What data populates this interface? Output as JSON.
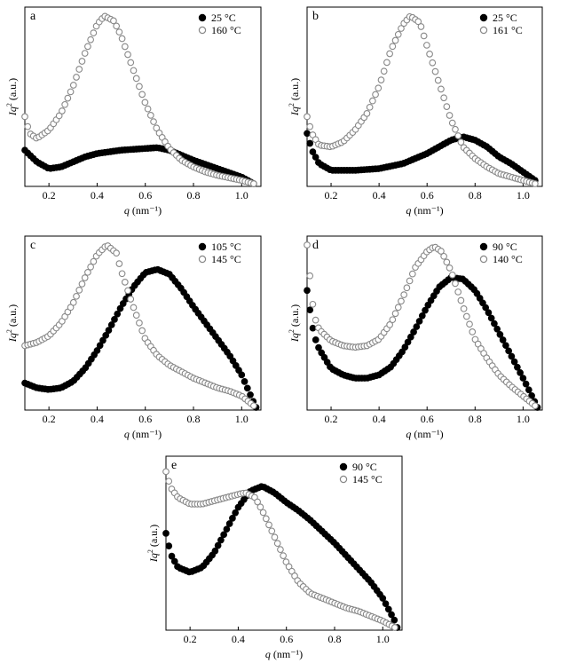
{
  "chart_data": [
    {
      "type": "scatter",
      "panel": "a",
      "xlabel_italic": "q",
      "xlabel_unit": "(nm⁻¹)",
      "ylabel_italic": "Iq",
      "ylabel_sup": "2",
      "ylabel_unit": "(a.u.)",
      "xticks": [
        "0.2",
        "0.4",
        "0.6",
        "0.8",
        "1.0"
      ],
      "xlim": [
        0.1,
        1.08
      ],
      "ylim": [
        0,
        1
      ],
      "legend": [
        {
          "label": "25 °C",
          "marker": "filled"
        },
        {
          "label": "160 °C",
          "marker": "open"
        }
      ],
      "series": [
        {
          "name": "25 °C",
          "marker": "filled",
          "points": [
            [
              0.1,
              0.2
            ],
            [
              0.15,
              0.13
            ],
            [
              0.2,
              0.09
            ],
            [
              0.25,
              0.1
            ],
            [
              0.3,
              0.13
            ],
            [
              0.35,
              0.16
            ],
            [
              0.4,
              0.18
            ],
            [
              0.5,
              0.2
            ],
            [
              0.6,
              0.21
            ],
            [
              0.65,
              0.215
            ],
            [
              0.7,
              0.2
            ],
            [
              0.8,
              0.14
            ],
            [
              0.9,
              0.09
            ],
            [
              1.0,
              0.04
            ],
            [
              1.05,
              0.0
            ]
          ]
        },
        {
          "name": "160 °C",
          "marker": "open",
          "points": [
            [
              0.1,
              0.4
            ],
            [
              0.12,
              0.3
            ],
            [
              0.15,
              0.27
            ],
            [
              0.2,
              0.32
            ],
            [
              0.25,
              0.42
            ],
            [
              0.3,
              0.58
            ],
            [
              0.35,
              0.78
            ],
            [
              0.4,
              0.95
            ],
            [
              0.43,
              1.0
            ],
            [
              0.47,
              0.97
            ],
            [
              0.5,
              0.88
            ],
            [
              0.55,
              0.68
            ],
            [
              0.6,
              0.48
            ],
            [
              0.65,
              0.32
            ],
            [
              0.7,
              0.21
            ],
            [
              0.75,
              0.14
            ],
            [
              0.8,
              0.1
            ],
            [
              0.85,
              0.07
            ],
            [
              0.9,
              0.05
            ],
            [
              1.0,
              0.02
            ],
            [
              1.05,
              0.0
            ]
          ]
        }
      ]
    },
    {
      "type": "scatter",
      "panel": "b",
      "xlabel_italic": "q",
      "xlabel_unit": "(nm⁻¹)",
      "ylabel_italic": "Iq",
      "ylabel_sup": "2",
      "ylabel_unit": "(a.u.)",
      "xticks": [
        "0.2",
        "0.4",
        "0.6",
        "0.8",
        "1.0"
      ],
      "xlim": [
        0.1,
        1.08
      ],
      "ylim": [
        0,
        1
      ],
      "legend": [
        {
          "label": "25 °C",
          "marker": "filled"
        },
        {
          "label": "161 °C",
          "marker": "open"
        }
      ],
      "series": [
        {
          "name": "25 °C",
          "marker": "filled",
          "points": [
            [
              0.1,
              0.3
            ],
            [
              0.12,
              0.2
            ],
            [
              0.15,
              0.12
            ],
            [
              0.2,
              0.08
            ],
            [
              0.3,
              0.08
            ],
            [
              0.4,
              0.09
            ],
            [
              0.5,
              0.12
            ],
            [
              0.6,
              0.18
            ],
            [
              0.7,
              0.26
            ],
            [
              0.75,
              0.28
            ],
            [
              0.8,
              0.26
            ],
            [
              0.85,
              0.22
            ],
            [
              0.9,
              0.16
            ],
            [
              0.95,
              0.12
            ],
            [
              1.0,
              0.07
            ],
            [
              1.05,
              0.02
            ]
          ]
        },
        {
          "name": "161 °C",
          "marker": "open",
          "points": [
            [
              0.1,
              0.4
            ],
            [
              0.12,
              0.3
            ],
            [
              0.15,
              0.23
            ],
            [
              0.2,
              0.22
            ],
            [
              0.25,
              0.25
            ],
            [
              0.3,
              0.32
            ],
            [
              0.35,
              0.42
            ],
            [
              0.4,
              0.58
            ],
            [
              0.45,
              0.8
            ],
            [
              0.5,
              0.95
            ],
            [
              0.53,
              1.0
            ],
            [
              0.57,
              0.96
            ],
            [
              0.6,
              0.82
            ],
            [
              0.65,
              0.6
            ],
            [
              0.7,
              0.38
            ],
            [
              0.75,
              0.22
            ],
            [
              0.8,
              0.15
            ],
            [
              0.85,
              0.1
            ],
            [
              0.9,
              0.06
            ],
            [
              1.0,
              0.02
            ],
            [
              1.05,
              0.0
            ]
          ]
        }
      ]
    },
    {
      "type": "scatter",
      "panel": "c",
      "xlabel_italic": "q",
      "xlabel_unit": "(nm⁻¹)",
      "ylabel_italic": "Iq",
      "ylabel_sup": "2",
      "ylabel_unit": "(a.u.)",
      "xticks": [
        "0.2",
        "0.4",
        "0.6",
        "0.8",
        "1.0"
      ],
      "xlim": [
        0.1,
        1.08
      ],
      "ylim": [
        0,
        1
      ],
      "legend": [
        {
          "label": "105 °C",
          "marker": "filled"
        },
        {
          "label": "145 °C",
          "marker": "open"
        }
      ],
      "series": [
        {
          "name": "105 °C",
          "marker": "filled",
          "points": [
            [
              0.1,
              0.15
            ],
            [
              0.15,
              0.12
            ],
            [
              0.2,
              0.11
            ],
            [
              0.25,
              0.12
            ],
            [
              0.3,
              0.16
            ],
            [
              0.35,
              0.24
            ],
            [
              0.4,
              0.35
            ],
            [
              0.45,
              0.48
            ],
            [
              0.5,
              0.62
            ],
            [
              0.55,
              0.74
            ],
            [
              0.6,
              0.83
            ],
            [
              0.65,
              0.85
            ],
            [
              0.7,
              0.82
            ],
            [
              0.75,
              0.73
            ],
            [
              0.8,
              0.62
            ],
            [
              0.85,
              0.52
            ],
            [
              0.9,
              0.42
            ],
            [
              0.95,
              0.32
            ],
            [
              1.0,
              0.2
            ],
            [
              1.05,
              0.03
            ],
            [
              1.06,
              0.0
            ]
          ]
        },
        {
          "name": "145 °C",
          "marker": "open",
          "points": [
            [
              0.1,
              0.38
            ],
            [
              0.15,
              0.4
            ],
            [
              0.2,
              0.44
            ],
            [
              0.25,
              0.52
            ],
            [
              0.3,
              0.64
            ],
            [
              0.35,
              0.8
            ],
            [
              0.4,
              0.94
            ],
            [
              0.44,
              1.0
            ],
            [
              0.48,
              0.95
            ],
            [
              0.5,
              0.84
            ],
            [
              0.55,
              0.62
            ],
            [
              0.6,
              0.42
            ],
            [
              0.65,
              0.32
            ],
            [
              0.7,
              0.26
            ],
            [
              0.75,
              0.22
            ],
            [
              0.8,
              0.18
            ],
            [
              0.85,
              0.15
            ],
            [
              0.9,
              0.12
            ],
            [
              0.95,
              0.1
            ],
            [
              1.0,
              0.07
            ],
            [
              1.05,
              0.01
            ]
          ]
        }
      ]
    },
    {
      "type": "scatter",
      "panel": "d",
      "xlabel_italic": "q",
      "xlabel_unit": "(nm⁻¹)",
      "ylabel_italic": "Iq",
      "ylabel_sup": "2",
      "ylabel_unit": "(a.u.)",
      "xticks": [
        "0.2",
        "0.4",
        "0.6",
        "0.8",
        "1.0"
      ],
      "xlim": [
        0.1,
        1.08
      ],
      "ylim": [
        0,
        1
      ],
      "legend": [
        {
          "label": "90 °C",
          "marker": "filled"
        },
        {
          "label": "140 °C",
          "marker": "open"
        }
      ],
      "series": [
        {
          "name": "90 °C",
          "marker": "filled",
          "points": [
            [
              0.1,
              0.72
            ],
            [
              0.11,
              0.62
            ],
            [
              0.12,
              0.52
            ],
            [
              0.13,
              0.44
            ],
            [
              0.15,
              0.36
            ],
            [
              0.2,
              0.24
            ],
            [
              0.25,
              0.2
            ],
            [
              0.3,
              0.18
            ],
            [
              0.35,
              0.18
            ],
            [
              0.4,
              0.2
            ],
            [
              0.45,
              0.25
            ],
            [
              0.5,
              0.35
            ],
            [
              0.55,
              0.48
            ],
            [
              0.6,
              0.62
            ],
            [
              0.65,
              0.74
            ],
            [
              0.7,
              0.8
            ],
            [
              0.75,
              0.79
            ],
            [
              0.8,
              0.72
            ],
            [
              0.85,
              0.6
            ],
            [
              0.9,
              0.46
            ],
            [
              0.95,
              0.32
            ],
            [
              1.0,
              0.18
            ],
            [
              1.05,
              0.03
            ],
            [
              1.06,
              0.0
            ]
          ]
        },
        {
          "name": "140 °C",
          "marker": "open",
          "points": [
            [
              0.1,
              1.0
            ],
            [
              0.11,
              0.84
            ],
            [
              0.12,
              0.68
            ],
            [
              0.13,
              0.56
            ],
            [
              0.15,
              0.48
            ],
            [
              0.2,
              0.41
            ],
            [
              0.25,
              0.38
            ],
            [
              0.3,
              0.37
            ],
            [
              0.35,
              0.38
            ],
            [
              0.4,
              0.42
            ],
            [
              0.45,
              0.52
            ],
            [
              0.5,
              0.68
            ],
            [
              0.55,
              0.86
            ],
            [
              0.6,
              0.96
            ],
            [
              0.63,
              0.99
            ],
            [
              0.66,
              0.96
            ],
            [
              0.7,
              0.84
            ],
            [
              0.75,
              0.62
            ],
            [
              0.8,
              0.42
            ],
            [
              0.85,
              0.3
            ],
            [
              0.9,
              0.2
            ],
            [
              0.95,
              0.13
            ],
            [
              1.0,
              0.07
            ],
            [
              1.05,
              0.01
            ]
          ]
        }
      ]
    },
    {
      "type": "scatter",
      "panel": "e",
      "xlabel_italic": "q",
      "xlabel_unit": "(nm⁻¹)",
      "ylabel_italic": "Iq",
      "ylabel_sup": "2",
      "ylabel_unit": "(a.u.)",
      "xticks": [
        "0.2",
        "0.4",
        "0.6",
        "0.8",
        "1.0"
      ],
      "xlim": [
        0.1,
        1.08
      ],
      "ylim": [
        0,
        1
      ],
      "legend": [
        {
          "label": "90 °C",
          "marker": "filled"
        },
        {
          "label": "145 °C",
          "marker": "open"
        }
      ],
      "series": [
        {
          "name": "90 °C",
          "marker": "filled",
          "points": [
            [
              0.1,
              0.58
            ],
            [
              0.12,
              0.45
            ],
            [
              0.15,
              0.37
            ],
            [
              0.2,
              0.34
            ],
            [
              0.25,
              0.37
            ],
            [
              0.3,
              0.46
            ],
            [
              0.35,
              0.6
            ],
            [
              0.4,
              0.74
            ],
            [
              0.45,
              0.84
            ],
            [
              0.5,
              0.87
            ],
            [
              0.55,
              0.83
            ],
            [
              0.6,
              0.77
            ],
            [
              0.65,
              0.72
            ],
            [
              0.7,
              0.66
            ],
            [
              0.75,
              0.59
            ],
            [
              0.8,
              0.52
            ],
            [
              0.85,
              0.44
            ],
            [
              0.9,
              0.36
            ],
            [
              0.95,
              0.28
            ],
            [
              1.0,
              0.18
            ],
            [
              1.05,
              0.04
            ],
            [
              1.06,
              0.0
            ]
          ]
        },
        {
          "name": "145 °C",
          "marker": "open",
          "points": [
            [
              0.1,
              0.96
            ],
            [
              0.12,
              0.86
            ],
            [
              0.15,
              0.8
            ],
            [
              0.2,
              0.76
            ],
            [
              0.25,
              0.76
            ],
            [
              0.3,
              0.78
            ],
            [
              0.35,
              0.8
            ],
            [
              0.4,
              0.82
            ],
            [
              0.43,
              0.83
            ],
            [
              0.47,
              0.8
            ],
            [
              0.5,
              0.72
            ],
            [
              0.55,
              0.56
            ],
            [
              0.6,
              0.4
            ],
            [
              0.65,
              0.28
            ],
            [
              0.7,
              0.21
            ],
            [
              0.75,
              0.18
            ],
            [
              0.8,
              0.15
            ],
            [
              0.85,
              0.12
            ],
            [
              0.9,
              0.1
            ],
            [
              0.95,
              0.07
            ],
            [
              1.0,
              0.04
            ],
            [
              1.05,
              0.0
            ]
          ]
        }
      ]
    }
  ]
}
